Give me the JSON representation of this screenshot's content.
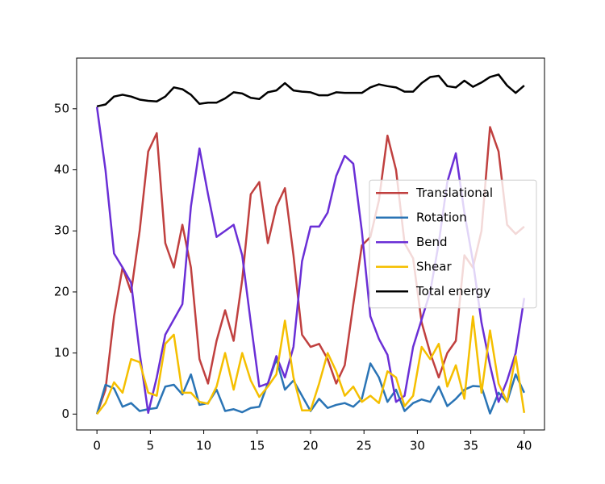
{
  "chart_data": {
    "type": "line",
    "x": [
      0,
      0.8,
      1.6,
      2.4,
      3.2,
      4,
      4.8,
      5.6,
      6.4,
      7.2,
      8,
      8.8,
      9.6,
      10.4,
      11.2,
      12,
      12.8,
      13.6,
      14.4,
      15.2,
      16,
      16.8,
      17.6,
      18.4,
      19.2,
      20,
      20.8,
      21.6,
      22.4,
      23.2,
      24,
      24.8,
      25.6,
      26.4,
      27.2,
      28,
      28.8,
      29.6,
      30.4,
      31.2,
      32,
      32.8,
      33.6,
      34.4,
      35.2,
      36,
      36.8,
      37.6,
      38.4,
      39.2,
      40
    ],
    "series": [
      {
        "name": "Translational",
        "color": "#c0403f",
        "values": [
          0,
          4,
          16,
          24,
          20,
          30,
          43,
          46,
          28,
          24,
          31,
          24,
          9,
          5,
          12,
          17,
          12,
          22,
          36,
          38,
          28,
          34,
          37,
          26,
          13,
          11,
          11.5,
          9,
          5,
          8,
          18,
          27.6,
          29,
          35,
          45.6,
          40,
          28,
          25.5,
          15,
          10,
          6,
          10,
          12,
          26,
          24,
          30,
          47,
          43,
          31,
          29.5,
          30.7
        ]
      },
      {
        "name": "Rotation",
        "color": "#2a74b5",
        "values": [
          0,
          4.8,
          4.2,
          1.2,
          1.8,
          0.5,
          0.8,
          1,
          4.5,
          4.8,
          3.2,
          6.5,
          1.5,
          1.8,
          4,
          0.5,
          0.8,
          0.3,
          1,
          1.2,
          5,
          9,
          4,
          5.5,
          3,
          0.5,
          2.5,
          1,
          1.5,
          1.8,
          1.2,
          2.5,
          8.3,
          6,
          2,
          4,
          0.5,
          1.8,
          2.4,
          2,
          4.5,
          1.3,
          2.5,
          4,
          4.6,
          4.5,
          0.1,
          3.5,
          2,
          6.5,
          3.5
        ]
      },
      {
        "name": "Bend",
        "color": "#6a2fd6",
        "values": [
          50.3,
          40,
          26.3,
          24,
          21.5,
          10,
          0.2,
          6,
          13,
          15.5,
          18,
          34,
          43.5,
          36,
          29,
          30,
          31,
          26,
          15,
          4.5,
          5,
          9.5,
          6,
          11,
          25,
          30.7,
          30.7,
          33,
          39,
          42.3,
          41,
          30,
          16,
          12.3,
          9.7,
          2,
          3,
          11,
          15.5,
          20,
          28,
          38,
          42.7,
          33,
          25,
          15,
          8,
          2,
          5.5,
          10,
          19
        ]
      },
      {
        "name": "Shear",
        "color": "#f5bf00",
        "values": [
          0,
          1.8,
          5.2,
          3.5,
          9,
          8.5,
          3.5,
          3,
          11.5,
          13,
          3.5,
          3.5,
          2,
          1.7,
          4.5,
          10,
          4,
          10,
          5.5,
          2.8,
          4.5,
          6.5,
          15.3,
          6,
          0.6,
          0.6,
          5,
          10,
          7,
          3,
          4.5,
          2,
          3,
          1.8,
          7,
          6,
          1.3,
          3,
          11,
          9,
          11.5,
          4.5,
          8,
          2.5,
          16,
          3.5,
          13.7,
          5,
          2,
          9.5,
          0.2
        ]
      },
      {
        "name": "Total energy",
        "color": "#000000",
        "values": [
          50.4,
          50.7,
          52,
          52.3,
          52,
          51.5,
          51.3,
          51.2,
          52,
          53.5,
          53.2,
          52.3,
          50.8,
          51,
          51,
          51.7,
          52.7,
          52.5,
          51.8,
          51.6,
          52.7,
          53,
          54.2,
          53,
          52.8,
          52.7,
          52.2,
          52.2,
          52.7,
          52.6,
          52.6,
          52.6,
          53.5,
          54,
          53.7,
          53.5,
          52.8,
          52.8,
          54.2,
          55.2,
          55.4,
          53.7,
          53.5,
          54.6,
          53.6,
          54.3,
          55.2,
          55.6,
          53.8,
          52.6,
          53.8
        ]
      }
    ],
    "xlim": [
      -1.9,
      41.9
    ],
    "ylim": [
      -2.6,
      58.3
    ],
    "xticks": [
      0,
      5,
      10,
      15,
      20,
      25,
      30,
      35,
      40
    ],
    "yticks": [
      0,
      10,
      20,
      30,
      40,
      50
    ],
    "legend": "center right"
  }
}
